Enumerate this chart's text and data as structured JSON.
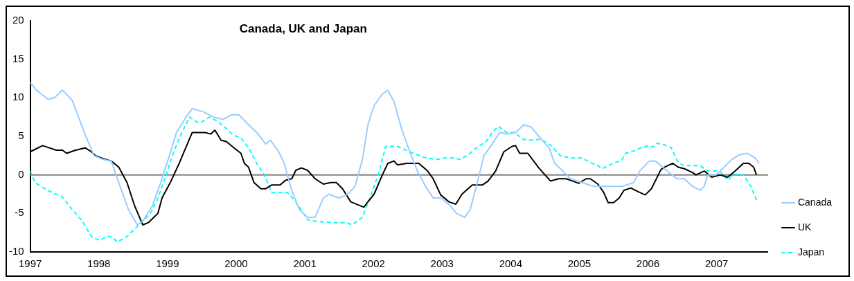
{
  "chart_data": {
    "type": "line",
    "title": "Canada, UK and Japan",
    "xlim": [
      1997,
      2007.75
    ],
    "xticks": [
      1997,
      1998,
      1999,
      2000,
      2001,
      2002,
      2003,
      2004,
      2005,
      2006,
      2007
    ],
    "ylim": [
      -10,
      20
    ],
    "yticks": [
      -10,
      -5,
      0,
      5,
      10,
      15,
      20
    ],
    "grid": false,
    "legend": "right",
    "marker": "none",
    "ref_lines": [
      {
        "axis": "y",
        "value": 0,
        "color": "#808080"
      }
    ],
    "series": [
      {
        "name": "Canada",
        "color": "#99ccff",
        "line_style": "solid",
        "x": [
          1997.0,
          1997.09,
          1997.26,
          1997.35,
          1997.47,
          1997.61,
          1997.81,
          1997.93,
          1998.06,
          1998.18,
          1998.29,
          1998.43,
          1998.56,
          1998.64,
          1998.78,
          1998.9,
          1999.01,
          1999.13,
          1999.27,
          1999.36,
          1999.52,
          1999.67,
          1999.81,
          1999.93,
          2000.04,
          2000.18,
          2000.3,
          2000.43,
          2000.5,
          2000.62,
          2000.7,
          2000.81,
          2000.92,
          2001.04,
          2001.15,
          2001.27,
          2001.35,
          2001.5,
          2001.63,
          2001.73,
          2001.84,
          2001.92,
          2002.01,
          2002.13,
          2002.21,
          2002.3,
          2002.41,
          2002.53,
          2002.64,
          2002.76,
          2002.87,
          2002.98,
          2003.12,
          2003.21,
          2003.33,
          2003.41,
          2003.5,
          2003.61,
          2003.73,
          2003.84,
          2003.96,
          2004.07,
          2004.19,
          2004.3,
          2004.41,
          2004.56,
          2004.64,
          2004.76,
          2004.87,
          2005.04,
          2005.21,
          2005.33,
          2005.5,
          2005.62,
          2005.79,
          2005.88,
          2006.02,
          2006.11,
          2006.24,
          2006.42,
          2006.53,
          2006.65,
          2006.76,
          2006.82,
          2006.87,
          2006.99,
          2007.11,
          2007.22,
          2007.33,
          2007.45,
          2007.56,
          2007.62
        ],
        "values": [
          12,
          11,
          9.8,
          10,
          11,
          9.7,
          5,
          2.5,
          2,
          1.8,
          -1,
          -4.5,
          -6.5,
          -6,
          -4,
          -1,
          2,
          5.5,
          7.5,
          8.6,
          8.2,
          7.5,
          7.2,
          7.8,
          7.8,
          6.5,
          5.5,
          4,
          4.5,
          3,
          1.5,
          -2,
          -4.5,
          -5.5,
          -5.5,
          -3,
          -2.5,
          -3,
          -2.5,
          -1.5,
          2,
          6.5,
          9,
          10.5,
          11,
          9.5,
          6,
          3,
          0.5,
          -1.5,
          -3,
          -3,
          -4,
          -5,
          -5.5,
          -4.5,
          -1.5,
          2.5,
          4,
          5.5,
          5.3,
          5.5,
          6.5,
          6.2,
          5,
          3.5,
          1.5,
          0.5,
          -0.5,
          -1,
          -1.5,
          -1.5,
          -1.5,
          -1.5,
          -1,
          0.5,
          1.8,
          1.8,
          0.8,
          -0.5,
          -0.5,
          -1.5,
          -2,
          -1.5,
          0,
          0,
          1,
          2,
          2.6,
          2.8,
          2.2,
          1.5
        ]
      },
      {
        "name": "UK",
        "color": "#000000",
        "line_style": "solid",
        "x": [
          1997.0,
          1997.18,
          1997.38,
          1997.47,
          1997.53,
          1997.66,
          1997.8,
          1997.89,
          1997.95,
          1998.06,
          1998.18,
          1998.29,
          1998.41,
          1998.52,
          1998.64,
          1998.72,
          1998.86,
          1998.92,
          1999.04,
          1999.17,
          1999.36,
          1999.55,
          1999.63,
          1999.69,
          1999.78,
          1999.86,
          1999.97,
          2000.07,
          2000.12,
          2000.18,
          2000.26,
          2000.36,
          2000.43,
          2000.52,
          2000.64,
          2000.72,
          2000.81,
          2000.87,
          2000.95,
          2001.04,
          2001.15,
          2001.27,
          2001.38,
          2001.46,
          2001.55,
          2001.67,
          2001.86,
          2001.92,
          2002.01,
          2002.13,
          2002.21,
          2002.3,
          2002.35,
          2002.49,
          2002.66,
          2002.79,
          2002.87,
          2002.98,
          2003.1,
          2003.2,
          2003.29,
          2003.44,
          2003.59,
          2003.67,
          2003.78,
          2003.9,
          2004.02,
          2004.07,
          2004.13,
          2004.25,
          2004.41,
          2004.58,
          2004.7,
          2004.81,
          2004.93,
          2004.99,
          2005.1,
          2005.16,
          2005.27,
          2005.35,
          2005.42,
          2005.5,
          2005.58,
          2005.65,
          2005.75,
          2005.86,
          2005.96,
          2006.05,
          2006.19,
          2006.24,
          2006.36,
          2006.44,
          2006.53,
          2006.65,
          2006.7,
          2006.82,
          2006.93,
          2007.05,
          2007.16,
          2007.27,
          2007.39,
          2007.47,
          2007.54,
          2007.58
        ],
        "values": [
          3,
          3.8,
          3.2,
          3.2,
          2.8,
          3.2,
          3.5,
          3,
          2.5,
          2.1,
          1.8,
          1,
          -1,
          -4,
          -6.5,
          -6.2,
          -5,
          -3,
          -1,
          1.5,
          5.5,
          5.5,
          5.3,
          5.8,
          4.5,
          4.3,
          3.5,
          2.8,
          1.5,
          1,
          -1,
          -1.8,
          -1.8,
          -1.3,
          -1.3,
          -0.7,
          -0.5,
          0.6,
          0.9,
          0.6,
          -0.5,
          -1.2,
          -1,
          -1,
          -1.8,
          -3.5,
          -4.2,
          -3.5,
          -2.5,
          0,
          1.5,
          1.8,
          1.3,
          1.5,
          1.5,
          0.5,
          -0.5,
          -2.6,
          -3.5,
          -3.8,
          -2.5,
          -1.3,
          -1.3,
          -0.8,
          0.5,
          3,
          3.7,
          3.8,
          2.8,
          2.8,
          0.9,
          -0.8,
          -0.5,
          -0.5,
          -0.9,
          -1.1,
          -0.5,
          -0.5,
          -1.2,
          -2.2,
          -3.6,
          -3.6,
          -3,
          -2,
          -1.7,
          -2.2,
          -2.6,
          -1.8,
          0.7,
          1,
          1.5,
          1,
          0.8,
          0.3,
          0,
          0.5,
          -0.3,
          0,
          -0.3,
          0.5,
          1.5,
          1.5,
          1,
          0
        ]
      },
      {
        "name": "Japan",
        "color": "#00ffff",
        "line_style": "dashed",
        "x": [
          1997.0,
          1997.07,
          1997.21,
          1997.32,
          1997.46,
          1997.61,
          1997.76,
          1997.89,
          1998.01,
          1998.12,
          1998.18,
          1998.27,
          1998.41,
          1998.58,
          1998.75,
          1998.86,
          1998.98,
          1999.09,
          1999.21,
          1999.32,
          1999.44,
          1999.49,
          1999.61,
          1999.72,
          1999.86,
          1999.95,
          2000.07,
          2000.18,
          2000.3,
          2000.41,
          2000.52,
          2000.64,
          2000.75,
          2000.87,
          2001.04,
          2001.15,
          2001.38,
          2001.61,
          2001.69,
          2001.84,
          2001.95,
          2002.07,
          2002.18,
          2002.35,
          2002.53,
          2002.64,
          2002.76,
          2002.93,
          2003.04,
          2003.16,
          2003.27,
          2003.41,
          2003.5,
          2003.64,
          2003.73,
          2003.82,
          2003.94,
          2004.05,
          2004.19,
          2004.3,
          2004.44,
          2004.59,
          2004.72,
          2004.87,
          2005.04,
          2005.16,
          2005.27,
          2005.33,
          2005.47,
          2005.62,
          2005.67,
          2005.79,
          2005.9,
          2006.02,
          2006.07,
          2006.13,
          2006.24,
          2006.34,
          2006.42,
          2006.51,
          2006.76,
          2006.87,
          2007.05,
          2007.16,
          2007.25,
          2007.39,
          2007.5,
          2007.59
        ],
        "values": [
          0.5,
          -1,
          -1.8,
          -2.3,
          -2.8,
          -4.5,
          -6,
          -8,
          -8.5,
          -8,
          -8,
          -8.7,
          -8,
          -6.5,
          -5,
          -3,
          0,
          3,
          5.5,
          7.5,
          6.8,
          6.8,
          7.5,
          7,
          6,
          5.2,
          4.8,
          3.5,
          1.5,
          0,
          -2.3,
          -2.3,
          -2.3,
          -3.5,
          -5.8,
          -6,
          -6.2,
          -6.2,
          -6.5,
          -5.5,
          -3,
          0,
          3.7,
          3.7,
          3,
          2.6,
          2.2,
          2,
          2.2,
          2.2,
          2,
          2.8,
          3.5,
          4.3,
          5.5,
          6.3,
          5.5,
          5.5,
          4.6,
          4.5,
          4.6,
          3.8,
          2.5,
          2.2,
          2.2,
          1.6,
          1.2,
          0.8,
          1.4,
          1.9,
          2.8,
          3.1,
          3.5,
          3.8,
          3.6,
          4.1,
          3.9,
          3.5,
          1.9,
          1.2,
          1.2,
          0.5,
          0.5,
          -0.7,
          0.1,
          0,
          -1.5,
          -3.5
        ]
      }
    ]
  }
}
